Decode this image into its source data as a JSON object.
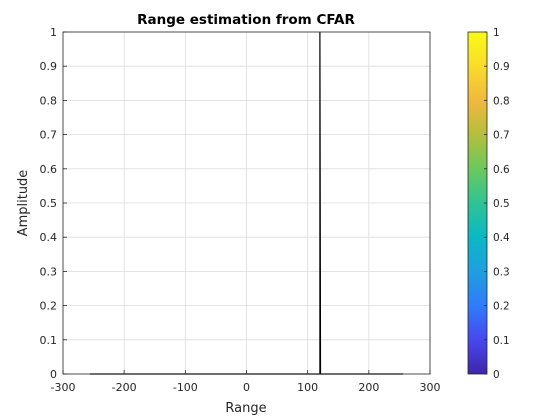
{
  "chart_data": {
    "type": "line",
    "title": "Range estimation from CFAR",
    "xlabel": "Range",
    "ylabel": "Amplitude",
    "xlim": [
      -300,
      300
    ],
    "ylim": [
      0,
      1
    ],
    "xticks": [
      -300,
      -200,
      -100,
      0,
      100,
      200,
      300
    ],
    "xtick_labels": [
      "-300",
      "-200",
      "-100",
      "0",
      "100",
      "200",
      "300"
    ],
    "yticks": [
      0,
      0.1,
      0.2,
      0.3,
      0.4,
      0.5,
      0.6,
      0.7,
      0.8,
      0.9,
      1
    ],
    "ytick_labels": [
      "0",
      "0.1",
      "0.2",
      "0.3",
      "0.4",
      "0.5",
      "0.6",
      "0.7",
      "0.8",
      "0.9",
      "1"
    ],
    "grid": true,
    "series": [
      {
        "color": "#000000",
        "x": [
          -256,
          119,
          120,
          120,
          121,
          256
        ],
        "y": [
          0,
          0,
          0,
          1,
          0,
          0
        ]
      }
    ],
    "colorbar": {
      "colormap": "parula",
      "range": [
        0,
        1
      ],
      "ticks": [
        0,
        0.1,
        0.2,
        0.3,
        0.4,
        0.5,
        0.6,
        0.7,
        0.8,
        0.9,
        1
      ],
      "tick_labels": [
        "0",
        "0.1",
        "0.2",
        "0.3",
        "0.4",
        "0.5",
        "0.6",
        "0.7",
        "0.8",
        "0.9",
        "1"
      ],
      "colors": [
        "#3e26a8",
        "#4748f0",
        "#2f7cfa",
        "#1e9fdf",
        "#0ab8c5",
        "#2fc395",
        "#6ac95d",
        "#b4be3c",
        "#f0b93e",
        "#fadc2b",
        "#f9fb15"
      ]
    }
  }
}
